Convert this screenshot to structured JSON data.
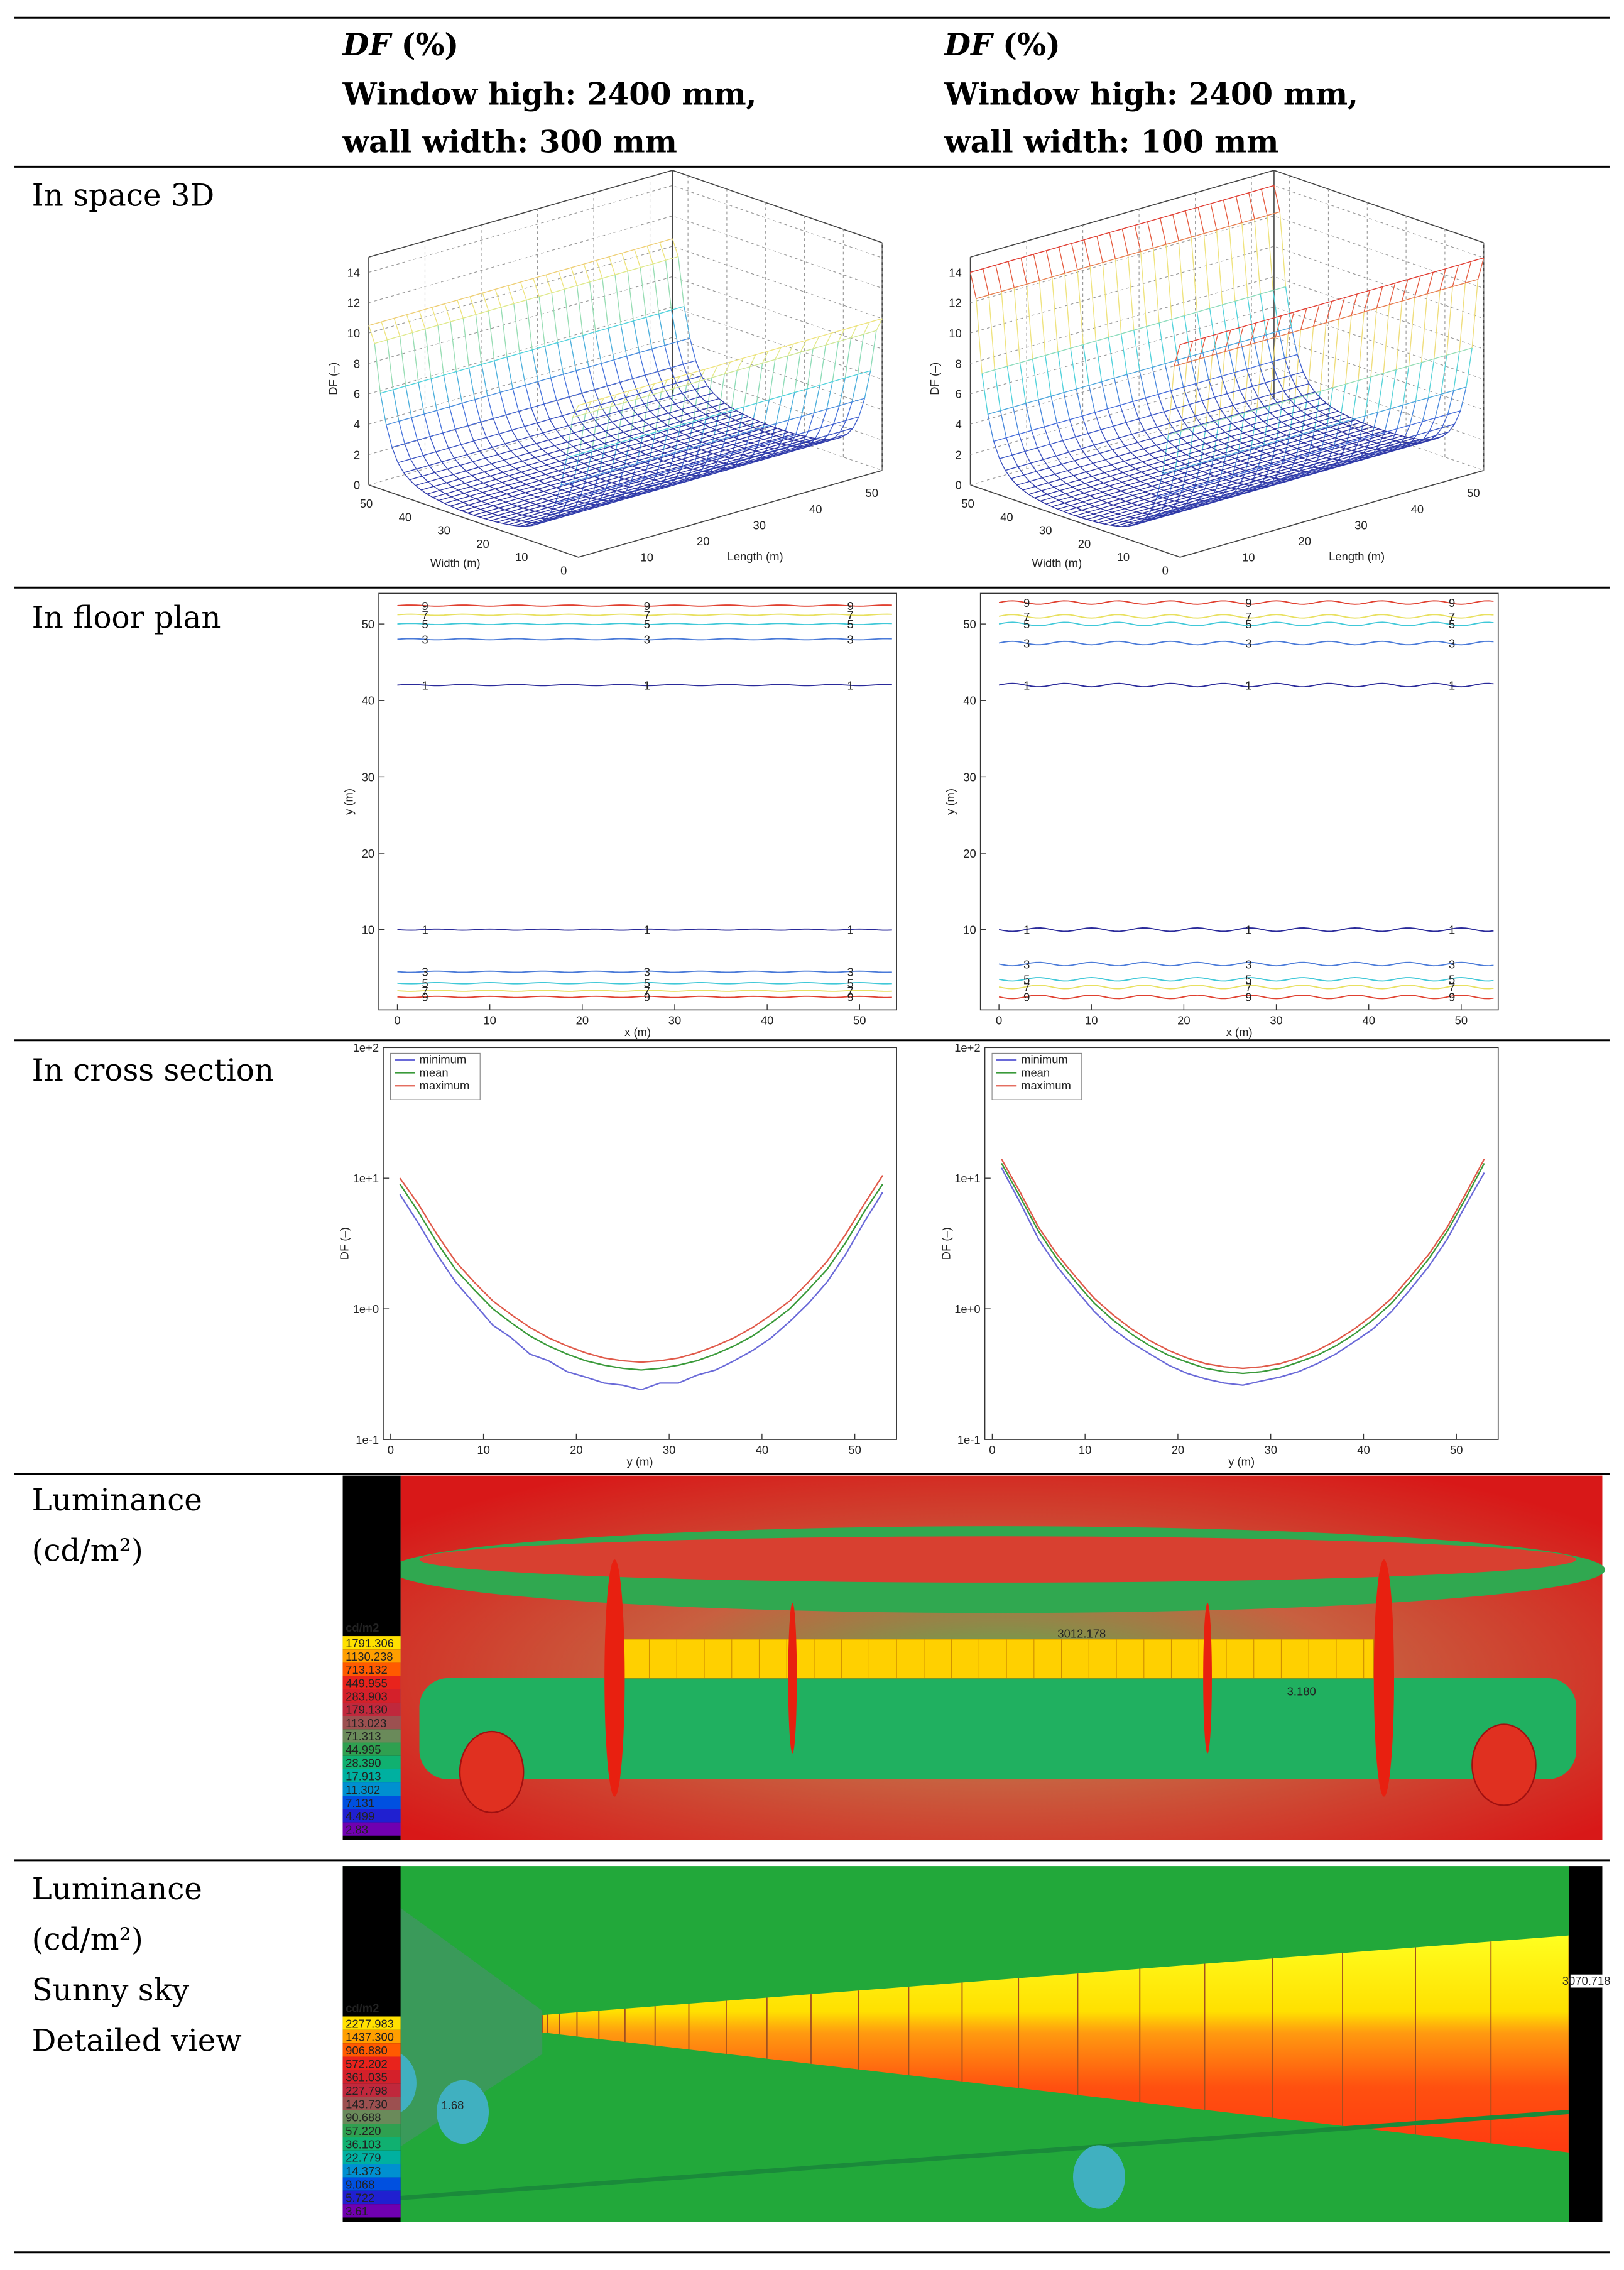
{
  "header": {
    "columns": [
      {
        "variable": "DF",
        "unit": "(%)",
        "lines": [
          "Window high: 2400 mm,",
          "wall width: 300 mm"
        ]
      },
      {
        "variable": "DF",
        "unit": "(%)",
        "lines": [
          "Window high: 2400 mm,",
          "wall width: 100 mm"
        ]
      }
    ]
  },
  "rows": [
    {
      "label": [
        "In space 3D"
      ]
    },
    {
      "label": [
        "In floor plan"
      ]
    },
    {
      "label": [
        "In cross section"
      ]
    },
    {
      "label": [
        "Luminance",
        "(cd/m²)"
      ]
    },
    {
      "label": [
        "Luminance",
        "(cd/m²)",
        "Sunny sky",
        "Detailed view"
      ]
    }
  ],
  "space_3d": {
    "z_label": "DF (–)",
    "zticks": [
      0,
      2,
      4,
      6,
      8,
      10,
      12,
      14
    ],
    "width_label": "Width (m)",
    "width_ticks": [
      0,
      10,
      20,
      30,
      40,
      50
    ],
    "length_label": "Length (m)",
    "length_ticks": [
      10,
      20,
      30,
      40,
      50
    ]
  },
  "floor_plan": {
    "x_label": "x (m)",
    "y_label": "y (m)",
    "xlim": [
      -2,
      54
    ],
    "ylim": [
      -0.5,
      54
    ],
    "xticks": [
      0,
      10,
      20,
      30,
      40,
      50
    ],
    "yticks": [
      10,
      20,
      30,
      40,
      50
    ],
    "columns": [
      {
        "contours": [
          {
            "level": 1,
            "y_bottom": 10,
            "y_top": 42,
            "color": "#2a2a9a"
          },
          {
            "level": 3,
            "y_bottom": 4.5,
            "y_top": 48,
            "color": "#4a7ad8"
          },
          {
            "level": 5,
            "y_bottom": 3,
            "y_top": 50,
            "color": "#40c8d8"
          },
          {
            "level": 7,
            "y_bottom": 2,
            "y_top": 51.2,
            "color": "#e8e060"
          },
          {
            "level": 9,
            "y_bottom": 1.2,
            "y_top": 52.4,
            "color": "#e04030"
          }
        ]
      },
      {
        "contours": [
          {
            "level": 1,
            "y_bottom": 10,
            "y_top": 42,
            "color": "#2a2a9a"
          },
          {
            "level": 3,
            "y_bottom": 5.5,
            "y_top": 47.5,
            "color": "#4a7ad8"
          },
          {
            "level": 5,
            "y_bottom": 3.5,
            "y_top": 50,
            "color": "#40c8d8"
          },
          {
            "level": 7,
            "y_bottom": 2.5,
            "y_top": 51,
            "color": "#e8e060"
          },
          {
            "level": 9,
            "y_bottom": 1.2,
            "y_top": 52.8,
            "color": "#e04030"
          }
        ]
      }
    ]
  },
  "cross_section": {
    "type": "line",
    "log_y": true,
    "x_label": "y (m)",
    "y_label": "DF (–)",
    "ylim": [
      0.1,
      100
    ],
    "yticks": [
      {
        "value": 0.1,
        "label": "1e-1"
      },
      {
        "value": 1,
        "label": "1e+0"
      },
      {
        "value": 10,
        "label": "1e+1"
      },
      {
        "value": 100,
        "label": "1e+2"
      }
    ],
    "xlim": [
      -0.8,
      54.5
    ],
    "xticks": [
      0,
      10,
      20,
      30,
      40,
      50
    ],
    "x": [
      1,
      3,
      5,
      7,
      9,
      11,
      13,
      15,
      17,
      19,
      21,
      23,
      25,
      27,
      29,
      31,
      33,
      35,
      37,
      39,
      41,
      43,
      45,
      47,
      49,
      51,
      53
    ],
    "columns": [
      {
        "series": [
          {
            "name": "minimum",
            "color": "#6a6ad8",
            "values": [
              7.5,
              4.5,
              2.6,
              1.6,
              1.1,
              0.75,
              0.6,
              0.45,
              0.4,
              0.33,
              0.3,
              0.27,
              0.26,
              0.24,
              0.27,
              0.27,
              0.31,
              0.34,
              0.4,
              0.48,
              0.6,
              0.8,
              1.1,
              1.6,
              2.6,
              4.6,
              7.8
            ]
          },
          {
            "name": "mean",
            "color": "#3a9a3a",
            "values": [
              9,
              5.5,
              3.2,
              2.0,
              1.4,
              1.0,
              0.78,
              0.62,
              0.52,
              0.45,
              0.4,
              0.37,
              0.35,
              0.34,
              0.35,
              0.37,
              0.4,
              0.45,
              0.52,
              0.62,
              0.78,
              1.0,
              1.4,
              2.0,
              3.2,
              5.5,
              9
            ]
          },
          {
            "name": "maximum",
            "color": "#e05a4a",
            "values": [
              10,
              6.3,
              3.7,
              2.3,
              1.6,
              1.15,
              0.9,
              0.72,
              0.6,
              0.52,
              0.46,
              0.42,
              0.4,
              0.39,
              0.4,
              0.42,
              0.46,
              0.52,
              0.6,
              0.72,
              0.9,
              1.15,
              1.6,
              2.3,
              3.7,
              6.3,
              10.5
            ]
          }
        ]
      },
      {
        "series": [
          {
            "name": "minimum",
            "color": "#6a6ad8",
            "values": [
              12,
              6.5,
              3.4,
              2.1,
              1.4,
              0.95,
              0.7,
              0.55,
              0.45,
              0.37,
              0.32,
              0.29,
              0.27,
              0.26,
              0.28,
              0.3,
              0.33,
              0.38,
              0.45,
              0.56,
              0.7,
              0.95,
              1.4,
              2.1,
              3.4,
              6.2,
              11
            ]
          },
          {
            "name": "mean",
            "color": "#3a9a3a",
            "values": [
              13,
              7.2,
              3.9,
              2.4,
              1.6,
              1.1,
              0.82,
              0.64,
              0.52,
              0.44,
              0.39,
              0.35,
              0.33,
              0.32,
              0.33,
              0.35,
              0.39,
              0.44,
              0.52,
              0.64,
              0.82,
              1.1,
              1.6,
              2.4,
              3.9,
              7.0,
              13
            ]
          },
          {
            "name": "maximum",
            "color": "#e05a4a",
            "values": [
              14,
              7.8,
              4.2,
              2.6,
              1.75,
              1.2,
              0.9,
              0.7,
              0.57,
              0.48,
              0.42,
              0.38,
              0.36,
              0.35,
              0.36,
              0.38,
              0.42,
              0.48,
              0.57,
              0.7,
              0.9,
              1.2,
              1.75,
              2.6,
              4.2,
              7.6,
              14
            ]
          }
        ]
      }
    ]
  },
  "luminance": [
    {
      "unit": "cd/m2",
      "scale": [
        "1791.306",
        "1130.238",
        "713.132",
        "449.955",
        "283.903",
        "179.130",
        "113.023",
        "71.313",
        "44.995",
        "28.390",
        "17.913",
        "11.302",
        "7.131",
        "4.499",
        "2.83"
      ],
      "annotations": [
        "3012.178",
        "3.180"
      ]
    },
    {
      "unit": "cd/m2",
      "scale": [
        "2277.983",
        "1437.300",
        "906.880",
        "572.202",
        "361.035",
        "227.798",
        "143.730",
        "90.688",
        "57.220",
        "36.103",
        "22.779",
        "14.373",
        "9.068",
        "5.722",
        "3.61"
      ],
      "annotations": [
        "3070.718",
        "1.68"
      ]
    }
  ]
}
